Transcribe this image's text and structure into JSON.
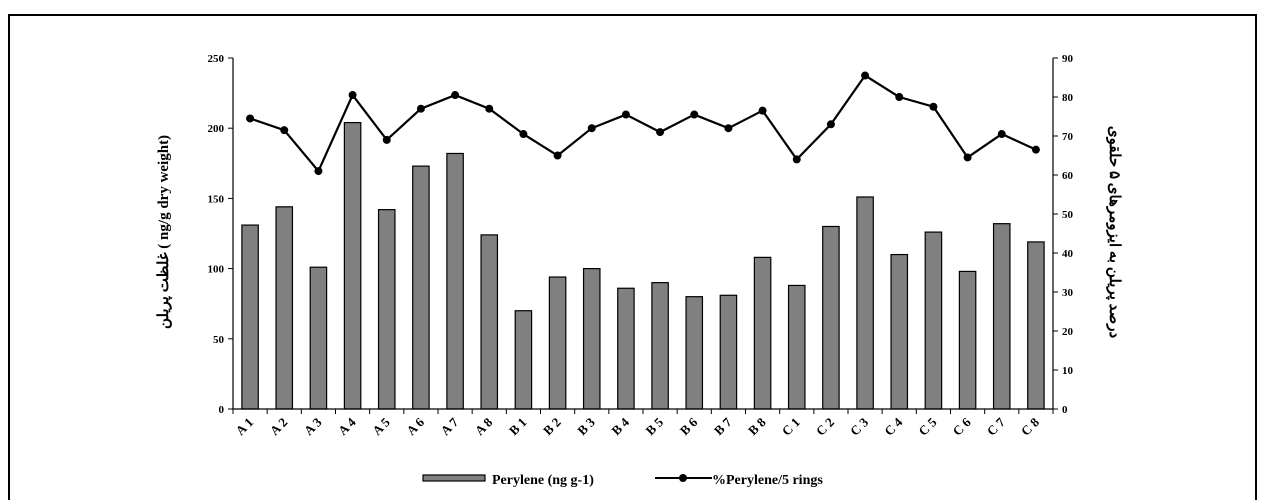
{
  "chart_data": {
    "type": "bar",
    "categories": [
      "A 1",
      "A 2",
      "A 3",
      "A 4",
      "A 5",
      "A 6",
      "A 7",
      "A 8",
      "B 1",
      "B 2",
      "B 3",
      "B 4",
      "B 5",
      "B 6",
      "B 7",
      "B 8",
      "C 1",
      "C 2",
      "C 3",
      "C 4",
      "C 5",
      "C 6",
      "C 7",
      "C 8"
    ],
    "series": [
      {
        "name": "Perylene (ng g-1)",
        "type": "bar",
        "axis": "left",
        "color": "#808080",
        "values": [
          131,
          144,
          101,
          204,
          142,
          173,
          182,
          124,
          70,
          94,
          100,
          86,
          90,
          80,
          81,
          108,
          88,
          130,
          151,
          110,
          126,
          98,
          132,
          119
        ]
      },
      {
        "name": "%Perylene/5 rings",
        "type": "line",
        "axis": "right",
        "color": "#000000",
        "values": [
          74.5,
          71.5,
          61,
          80.5,
          69,
          77,
          80.5,
          77,
          70.5,
          65,
          72,
          75.5,
          71,
          75.5,
          72,
          76.5,
          64,
          73,
          85.5,
          80,
          77.5,
          64.5,
          70.5,
          66.5
        ]
      }
    ],
    "ylabel": "غلظت پریلن ( ng/g dry weight)",
    "y2label": "درصد پریلن به ایزومرهای ۵ حلقوی",
    "ylim": [
      0,
      250
    ],
    "y2lim": [
      0,
      90
    ],
    "yticks": [
      "0",
      "50",
      "100",
      "150",
      "200",
      "250"
    ],
    "y2ticks": [
      "0",
      "10",
      "20",
      "30",
      "40",
      "50",
      "60",
      "70",
      "80",
      "90"
    ],
    "legend": [
      "Perylene (ng g-1)",
      "%Perylene/5 rings"
    ],
    "legend_position": "bottom",
    "grid": false
  }
}
